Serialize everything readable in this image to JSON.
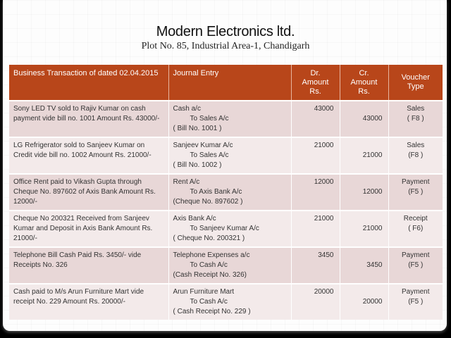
{
  "header": {
    "title": "Modern Electronics ltd.",
    "address": "Plot No. 85, Industrial Area-1, Chandigarh"
  },
  "table": {
    "columns": [
      "Business Transaction of dated  02.04.2015",
      "Journal Entry",
      "Dr.",
      "Amount Rs.",
      "Cr.",
      "Amount Rs.",
      "Voucher",
      "Type"
    ],
    "rows": [
      {
        "transaction": "Sony LED TV sold to Rajiv Kumar on cash payment vide bill no. 1001  Amount Rs. 43000/-",
        "debit_account": "Cash a/c",
        "credit_account": "To Sales A/c",
        "reference": "( Bill No. 1001 )",
        "dr_amount": "43000",
        "cr_amount": "43000",
        "voucher_type": "Sales",
        "voucher_key": "( F8 )"
      },
      {
        "transaction": "LG Refrigerator sold to Sanjeev Kumar on Credit vide bill no. 1002  Amount Rs. 21000/-",
        "debit_account": "Sanjeev Kumar A/c",
        "credit_account": "To Sales A/c",
        "reference": "( Bill No. 1002 )",
        "dr_amount": "21000",
        "cr_amount": "21000",
        "voucher_type": "Sales",
        "voucher_key": "(F8 )"
      },
      {
        "transaction": "Office Rent paid to Vikash Gupta through Cheque No. 897602 of Axis Bank Amount Rs. 12000/-",
        "debit_account": "Rent A/c",
        "credit_account": "To Axis Bank A/c",
        "reference": "(Cheque  No. 897602 )",
        "dr_amount": "12000",
        "cr_amount": "12000",
        "voucher_type": "Payment",
        "voucher_key": "(F5 )"
      },
      {
        "transaction": "Cheque No 200321 Received from Sanjeev Kumar and Deposit in Axis Bank Amount Rs. 21000/-",
        "debit_account": "Axis Bank A/c",
        "credit_account": "To Sanjeev Kumar A/c",
        "reference": "( Cheque No. 200321 )",
        "dr_amount": "21000",
        "cr_amount": "21000",
        "voucher_type": "Receipt",
        "voucher_key": "( F6)"
      },
      {
        "transaction": "Telephone Bill Cash Paid Rs. 3450/-  vide Receipts No. 326",
        "debit_account": "Telephone Expenses a/c",
        "credit_account": "To Cash A/c",
        "reference": "(Cash Receipt No. 326)",
        "dr_amount": "3450",
        "cr_amount": "3450",
        "voucher_type": "Payment",
        "voucher_key": "(F5 )"
      },
      {
        "transaction": "Cash paid to M/s  Arun Furniture  Mart  vide receipt No. 229 Amount Rs. 20000/-",
        "debit_account": "Arun Furniture Mart",
        "credit_account": "To Cash A/c",
        "reference": "( Cash Receipt No. 229 )",
        "dr_amount": "20000",
        "cr_amount": "20000",
        "voucher_type": "Payment",
        "voucher_key": "(F5 )"
      }
    ]
  },
  "colors": {
    "header_bg": "#b8461a",
    "row_odd": "#e8d7d7",
    "row_even": "#f3eaea"
  }
}
